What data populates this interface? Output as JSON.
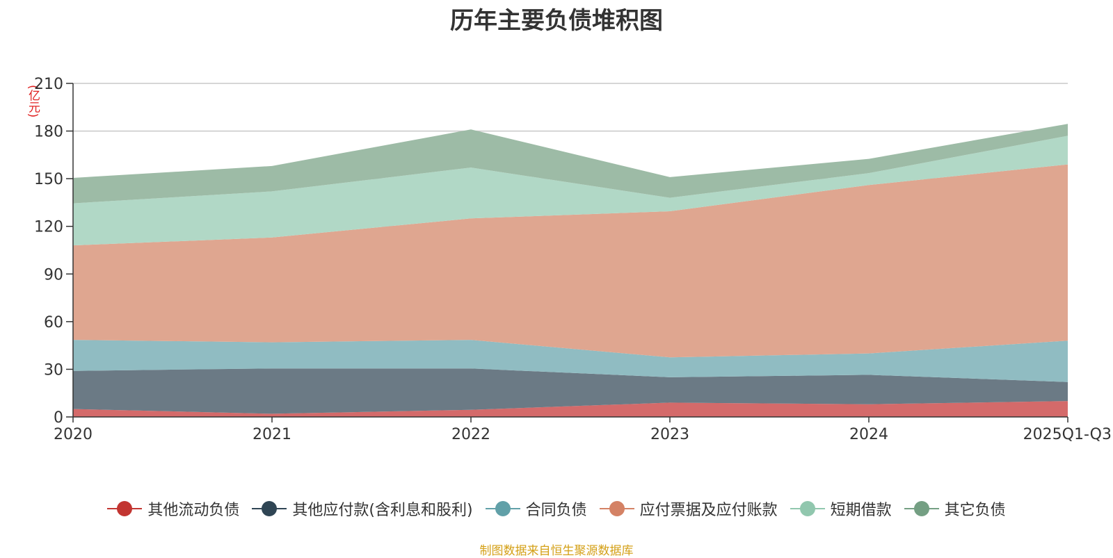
{
  "chart_data": {
    "type": "area",
    "stacked": true,
    "title": "历年主要负债堆积图",
    "unit": "(亿元)",
    "categories": [
      "2020",
      "2021",
      "2022",
      "2023",
      "2024",
      "2025Q1-Q3"
    ],
    "ylim": [
      0,
      210
    ],
    "yticks": [
      0,
      30,
      60,
      90,
      120,
      150,
      180,
      210
    ],
    "grid": true,
    "legend_position": "bottom",
    "series": [
      {
        "name": "其他流动负债",
        "color": "#c23531",
        "fill": "#d46a6a",
        "values": [
          5,
          2,
          4.5,
          9,
          8,
          10
        ]
      },
      {
        "name": "其他应付款(含利息和股利)",
        "color": "#2f4554",
        "fill": "#6b7a85",
        "values": [
          24,
          28.5,
          26,
          16,
          18.5,
          12
        ]
      },
      {
        "name": "合同负债",
        "color": "#61a0a8",
        "fill": "#90bcc2",
        "values": [
          19.5,
          16.5,
          18,
          12.5,
          13.5,
          26
        ]
      },
      {
        "name": "应付票据及应付账款",
        "color": "#d48265",
        "fill": "#dfa690",
        "values": [
          59.5,
          66,
          76.5,
          92,
          106,
          111
        ]
      },
      {
        "name": "短期借款",
        "color": "#91c7ae",
        "fill": "#b1d8c6",
        "values": [
          26.5,
          29,
          32,
          8.5,
          7.5,
          18
        ]
      },
      {
        "name": "其它负债",
        "color": "#749f83",
        "fill": "#9dbba6",
        "values": [
          16,
          16,
          24,
          13,
          9,
          7.5
        ]
      }
    ],
    "source_note": "制图数据来自恒生聚源数据库"
  },
  "colors": {
    "axis": "#333333",
    "grid": "#c8c8c8",
    "tick_text": "#333333"
  }
}
